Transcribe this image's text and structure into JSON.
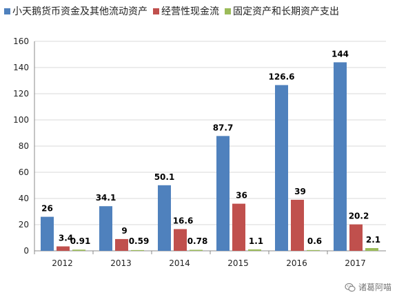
{
  "chart_data": {
    "type": "bar",
    "title": "",
    "xlabel": "",
    "ylabel": "",
    "categories": [
      "2012",
      "2013",
      "2014",
      "2015",
      "2016",
      "2017"
    ],
    "series": [
      {
        "name": "小天鹅货币资金及其他流动资产",
        "color": "#4F81BD",
        "values": [
          26,
          34.1,
          50.1,
          87.7,
          126.6,
          144
        ],
        "labels": [
          "26",
          "34.1",
          "50.1",
          "87.7",
          "126.6",
          "144"
        ]
      },
      {
        "name": "经营性现金流",
        "color": "#C0504D",
        "values": [
          3.4,
          9,
          16.6,
          36,
          39,
          20.2
        ],
        "labels": [
          "3.4",
          "9",
          "16.6",
          "36",
          "39",
          "20.2"
        ]
      },
      {
        "name": "固定资产和长期资产支出",
        "color": "#9BBB59",
        "values": [
          0.91,
          0.59,
          0.78,
          1.1,
          0.6,
          2.1
        ],
        "labels": [
          "0.91",
          "0.59",
          "0.78",
          "1.1",
          "0.6",
          "2.1"
        ]
      }
    ],
    "ylim": [
      0,
      160
    ],
    "yticks": [
      "0",
      "20",
      "40",
      "60",
      "80",
      "100",
      "120",
      "140",
      "160"
    ],
    "grid": true,
    "legend_position": "top"
  },
  "watermark": {
    "text": "诸葛阿喵",
    "icon": "wechat-icon"
  }
}
